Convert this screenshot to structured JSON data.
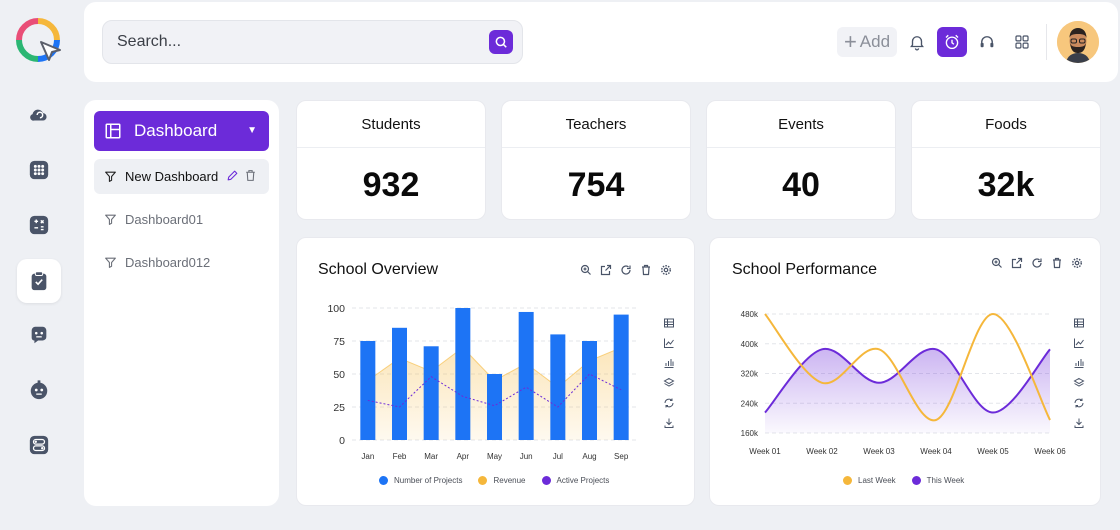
{
  "search": {
    "placeholder": "Search..."
  },
  "header": {
    "add_label": "Add",
    "add_plus": "+"
  },
  "sidebar": {
    "dashboard_label": "Dashboard",
    "items": [
      {
        "label": "New Dashboard"
      },
      {
        "label": "Dashboard01"
      },
      {
        "label": "Dashboard012"
      }
    ]
  },
  "stats": [
    {
      "title": "Students",
      "value": "932"
    },
    {
      "title": "Teachers",
      "value": "754"
    },
    {
      "title": "Events",
      "value": "40"
    },
    {
      "title": "Foods",
      "value": "32k"
    }
  ],
  "colors": {
    "accent": "#6c2bd9",
    "blue": "#1d74f5",
    "orange": "#f5b73b",
    "purple": "#6c2bd9"
  },
  "chart_data": [
    {
      "type": "bar",
      "title": "School Overview",
      "categories": [
        "Jan",
        "Feb",
        "Mar",
        "Apr",
        "May",
        "Jun",
        "Jul",
        "Aug",
        "Sep"
      ],
      "ylim": [
        0,
        100
      ],
      "yticks": [
        "100",
        "75",
        "50",
        "25",
        "0"
      ],
      "series": [
        {
          "name": "Number of Projects",
          "type": "bar",
          "color": "#1d74f5",
          "values": [
            75,
            85,
            71,
            100,
            50,
            97,
            80,
            75,
            95
          ]
        },
        {
          "name": "Revenue",
          "type": "area",
          "color": "#f5b73b",
          "values": [
            45,
            62,
            52,
            70,
            45,
            58,
            40,
            60,
            70
          ]
        },
        {
          "name": "Active Projects",
          "type": "line",
          "color": "#6c2bd9",
          "values": [
            30,
            25,
            48,
            33,
            26,
            40,
            25,
            50,
            38
          ]
        }
      ]
    },
    {
      "type": "area",
      "title": "School Performance",
      "categories": [
        "Week 01",
        "Week 02",
        "Week 03",
        "Week 04",
        "Week 05",
        "Week 06"
      ],
      "ylim": [
        160,
        480
      ],
      "yticks": [
        "480k",
        "400k",
        "320k",
        "240k",
        "160k"
      ],
      "series": [
        {
          "name": "Last Week",
          "type": "line",
          "color": "#f5b73b",
          "values": [
            480,
            295,
            385,
            195,
            480,
            195
          ]
        },
        {
          "name": "This Week",
          "type": "area",
          "color": "#6c2bd9",
          "values": [
            215,
            385,
            295,
            385,
            215,
            385
          ]
        }
      ]
    }
  ]
}
